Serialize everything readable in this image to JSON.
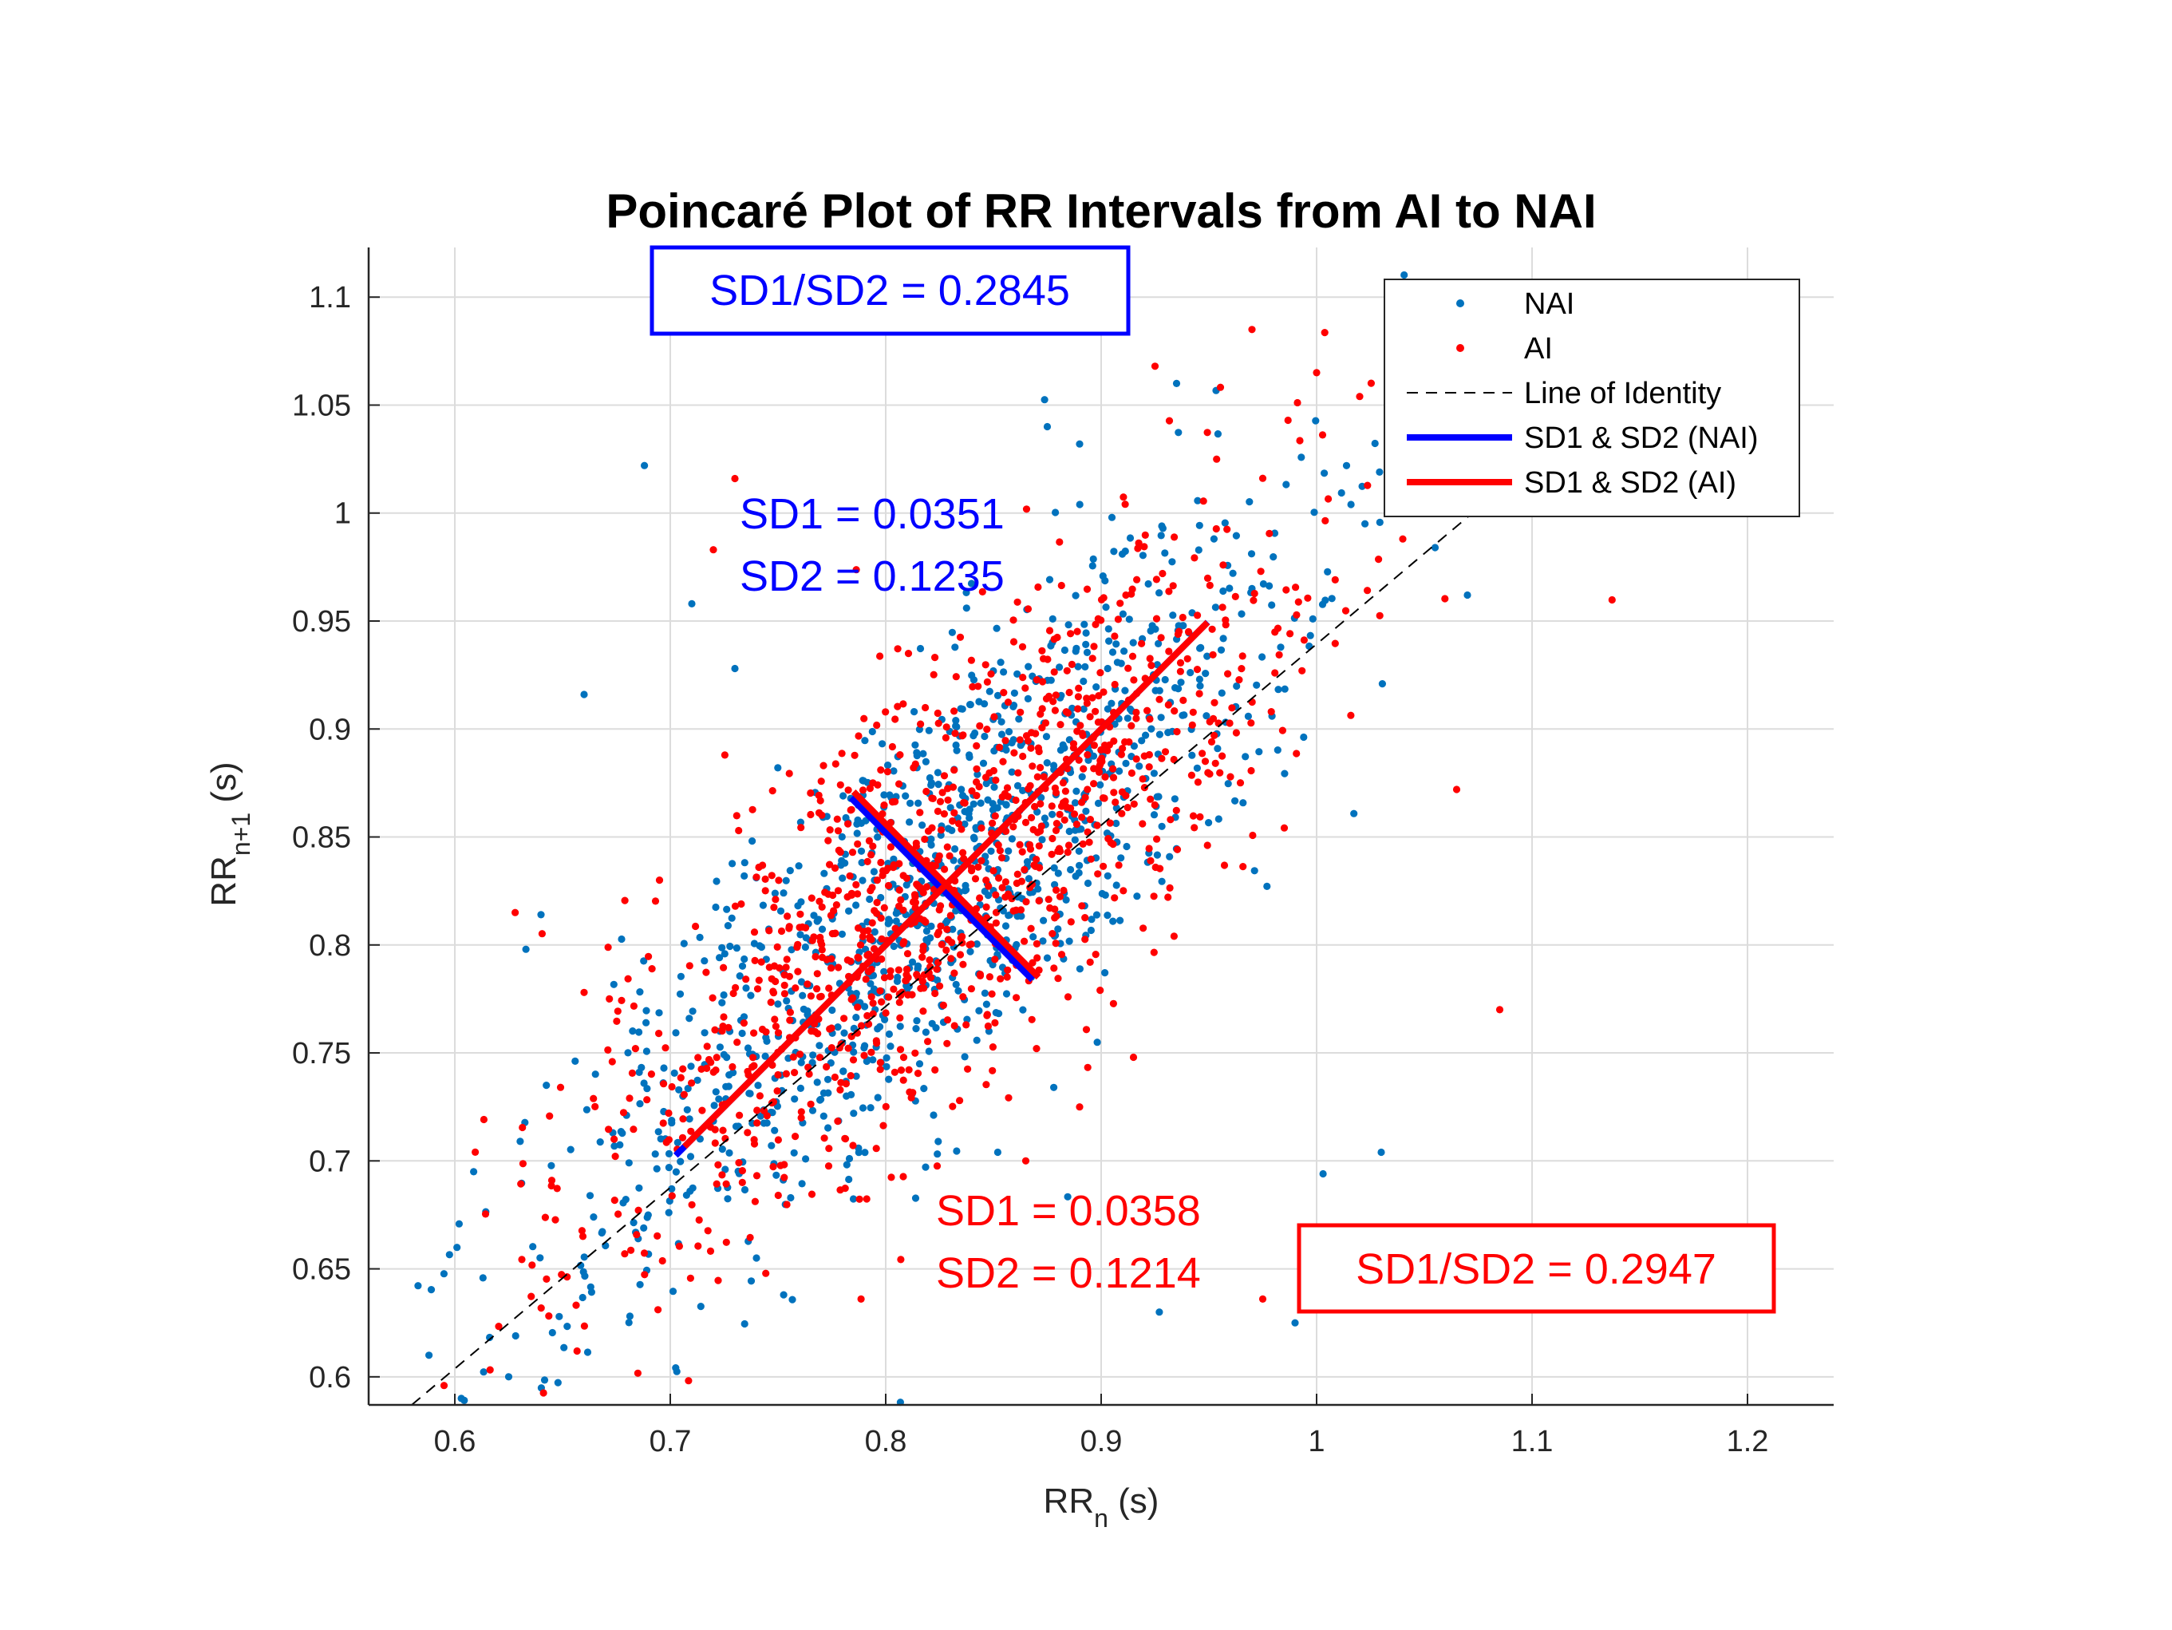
{
  "chart_data": {
    "type": "scatter",
    "title": "Poincaré Plot of RR Intervals from AI to NAI",
    "xlabel": {
      "main": "RR",
      "sub": "n",
      "unit": " (s)"
    },
    "ylabel": {
      "main": "RR",
      "sub": "n+1",
      "unit": " (s)"
    },
    "xlim": [
      0.56,
      1.24
    ],
    "ylim": [
      0.587,
      1.123
    ],
    "xticks": [
      "0.6",
      "0.7",
      "0.8",
      "0.9",
      "1",
      "1.1",
      "1.2"
    ],
    "yticks": [
      "0.6",
      "0.65",
      "0.7",
      "0.75",
      "0.8",
      "0.85",
      "0.9",
      "0.95",
      "1",
      "1.05",
      "1.1"
    ],
    "grid": true,
    "legend_position": "top-right",
    "series": [
      {
        "name": "NAI",
        "color": "#0072BD",
        "marker": "dot",
        "center": [
          0.826,
          0.826
        ],
        "sd1": 0.0351,
        "sd2": 0.1235,
        "n_points": 1100,
        "points": [
          [
            0.588,
            0.61
          ],
          [
            0.603,
            0.59
          ],
          [
            0.625,
            0.6
          ],
          [
            0.688,
            1.022
          ],
          [
            0.66,
            0.916
          ],
          [
            0.633,
            0.798
          ],
          [
            0.64,
            0.814
          ],
          [
            0.875,
            1.04
          ],
          [
            0.935,
            1.06
          ],
          [
            0.99,
            0.625
          ],
          [
            1.003,
            0.694
          ],
          [
            1.03,
            0.704
          ],
          [
            0.927,
            0.63
          ],
          [
            0.852,
            0.704
          ],
          [
            0.878,
            0.734
          ],
          [
            0.74,
            0.655
          ],
          [
            0.71,
            0.958
          ],
          [
            0.73,
            0.928
          ],
          [
            0.97,
            0.965
          ],
          [
            1.07,
            0.962
          ],
          [
            1.055,
            0.984
          ],
          [
            0.89,
            1.032
          ],
          [
            0.905,
            0.998
          ]
        ]
      },
      {
        "name": "AI",
        "color": "#FF0000",
        "marker": "dot",
        "center": [
          0.828,
          0.828
        ],
        "sd1": 0.0358,
        "sd2": 0.1214,
        "n_points": 1100,
        "points": [
          [
            0.595,
            0.596
          ],
          [
            0.628,
            0.815
          ],
          [
            0.73,
            1.016
          ],
          [
            0.925,
            1.068
          ],
          [
            0.97,
            1.085
          ],
          [
            1.085,
            0.77
          ],
          [
            1.065,
            0.872
          ],
          [
            0.915,
            0.748
          ],
          [
            0.87,
            0.752
          ],
          [
            0.975,
            0.636
          ],
          [
            0.89,
            0.725
          ],
          [
            0.865,
            0.7
          ],
          [
            0.72,
            0.983
          ],
          [
            0.695,
            0.83
          ],
          [
            0.66,
            0.778
          ],
          [
            1.0,
            1.065
          ],
          [
            1.02,
            1.054
          ],
          [
            1.04,
            0.988
          ]
        ]
      }
    ],
    "identity_line": {
      "name": "Line of Identity",
      "from": [
        0.58,
        0.58
      ],
      "to": [
        1.12,
        1.12
      ]
    }
  },
  "legend": {
    "items": [
      {
        "label": "NAI",
        "kind": "dot",
        "color": "#0072BD"
      },
      {
        "label": "AI",
        "kind": "dot",
        "color": "#FF0000"
      },
      {
        "label": "Line of Identity",
        "kind": "dashed",
        "color": "#000000"
      },
      {
        "label": "SD1 & SD2 (NAI)",
        "kind": "line",
        "color": "#0000FF"
      },
      {
        "label": "SD1 & SD2 (AI)",
        "kind": "line",
        "color": "#FF0000"
      }
    ]
  },
  "annotations": {
    "nai_sd1": "SD1 = 0.0351",
    "nai_sd2": "SD2 = 0.1235",
    "nai_ratio": "SD1/SD2 = 0.2845",
    "ai_sd1": "SD1 = 0.0358",
    "ai_sd2": "SD2 = 0.1214",
    "ai_ratio": "SD1/SD2 = 0.2947",
    "nai_color": "#0000FF",
    "ai_color": "#FF0000"
  }
}
